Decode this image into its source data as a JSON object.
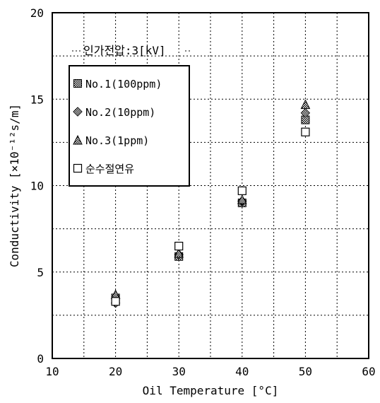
{
  "chart_data": {
    "type": "scatter",
    "title": "",
    "xlabel": "Oil Temperature [°C]",
    "ylabel": "Conductivity [×10⁻¹²s/m]",
    "xlim": [
      10,
      60
    ],
    "ylim": [
      0,
      20
    ],
    "xticks": [
      10,
      20,
      30,
      40,
      50,
      60
    ],
    "yticks": [
      0,
      5,
      10,
      15,
      20
    ],
    "grid": true,
    "annotation": "인가전압:3[kV]",
    "legend_position": "upper-left",
    "series": [
      {
        "name": "No.1(100ppm)",
        "marker": "hatched-square",
        "x": [
          20,
          30,
          40,
          50
        ],
        "y": [
          3.5,
          5.9,
          9.0,
          13.8
        ]
      },
      {
        "name": "No.2(10ppm)",
        "marker": "diamond",
        "x": [
          20,
          30,
          40,
          50
        ],
        "y": [
          3.2,
          6.0,
          9.1,
          14.2
        ]
      },
      {
        "name": "No.3(1ppm)",
        "marker": "triangle",
        "x": [
          20,
          30,
          40,
          50
        ],
        "y": [
          3.7,
          6.1,
          9.2,
          14.7
        ]
      },
      {
        "name": "순수절연유",
        "marker": "open-square",
        "x": [
          20,
          30,
          40,
          50
        ],
        "y": [
          3.3,
          6.5,
          9.7,
          13.1
        ]
      }
    ]
  }
}
